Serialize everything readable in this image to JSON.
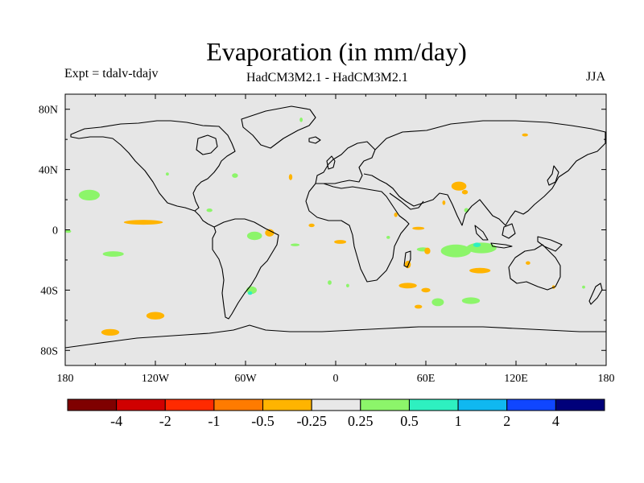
{
  "chart_data": {
    "type": "heatmap",
    "title": "Evaporation (in mm/day)",
    "left_label": "Expt = tdalv-tdajv",
    "center_label": "HadCM3M2.1 - HadCM3M2.1",
    "right_label": "JJA",
    "x_range": [
      -180,
      180
    ],
    "y_range": [
      -90,
      90
    ],
    "x_ticks": [
      {
        "value": -180,
        "label": "180"
      },
      {
        "value": -120,
        "label": "120W"
      },
      {
        "value": -60,
        "label": "60W"
      },
      {
        "value": 0,
        "label": "0"
      },
      {
        "value": 60,
        "label": "60E"
      },
      {
        "value": 120,
        "label": "120E"
      },
      {
        "value": 180,
        "label": "180"
      }
    ],
    "y_ticks": [
      {
        "value": 80,
        "label": "80N"
      },
      {
        "value": 40,
        "label": "40N"
      },
      {
        "value": 0,
        "label": "0"
      },
      {
        "value": -40,
        "label": "40S"
      },
      {
        "value": -80,
        "label": "80S"
      }
    ],
    "colorbar": {
      "colors": [
        "#7f0000",
        "#d00000",
        "#ff2a00",
        "#ff7b00",
        "#ffb400",
        "#e8e8e8",
        "#8cf56a",
        "#2ef0c0",
        "#10b8f0",
        "#1046ff",
        "#00007a"
      ],
      "labels": [
        "-4",
        "-2",
        "-1",
        "-0.5",
        "-0.25",
        "0.25",
        "0.5",
        "1",
        "2",
        "4"
      ]
    },
    "anomalies": [
      {
        "lon": -164,
        "lat": 23,
        "rlon": 7,
        "rlat": 3.5,
        "class": 0.5
      },
      {
        "lon": -148,
        "lat": -16,
        "rlon": 7,
        "rlat": 1.8,
        "class": 0.5
      },
      {
        "lon": -128,
        "lat": 5,
        "rlon": 13,
        "rlat": 1.6,
        "class": -0.25
      },
      {
        "lon": -120,
        "lat": -57,
        "rlon": 6,
        "rlat": 2.5,
        "class": -0.25
      },
      {
        "lon": -150,
        "lat": -68,
        "rlon": 6,
        "rlat": 2.2,
        "class": -0.25
      },
      {
        "lon": -54,
        "lat": -4,
        "rlon": 5,
        "rlat": 2.8,
        "class": 0.5
      },
      {
        "lon": -44,
        "lat": -2,
        "rlon": 3,
        "rlat": 2.5,
        "class": -0.25
      },
      {
        "lon": -56,
        "lat": -40,
        "rlon": 3.5,
        "rlat": 2.5,
        "class": 0.5
      },
      {
        "lon": -57,
        "lat": -42,
        "rlon": 1.5,
        "rlat": 1.2,
        "class": 1
      },
      {
        "lon": -27,
        "lat": -10,
        "rlon": 3,
        "rlat": 0.9,
        "class": 0.5
      },
      {
        "lon": 3,
        "lat": -8,
        "rlon": 4,
        "rlat": 1.3,
        "class": -0.25
      },
      {
        "lon": -4,
        "lat": -35,
        "rlon": 1.3,
        "rlat": 1.5,
        "class": 0.5
      },
      {
        "lon": 8,
        "lat": -37,
        "rlon": 1,
        "rlat": 1.2,
        "class": 0.5
      },
      {
        "lon": -16,
        "lat": 3,
        "rlon": 2,
        "rlat": 1.2,
        "class": -0.25
      },
      {
        "lon": 58,
        "lat": -13,
        "rlon": 4,
        "rlat": 1.4,
        "class": 0.5
      },
      {
        "lon": 55,
        "lat": 1,
        "rlon": 4,
        "rlat": 1,
        "class": -0.25
      },
      {
        "lon": 48,
        "lat": -23,
        "rlon": 2,
        "rlat": 2.5,
        "class": -0.25
      },
      {
        "lon": 61,
        "lat": -14,
        "rlon": 2,
        "rlat": 2.2,
        "class": -0.25
      },
      {
        "lon": 48,
        "lat": -37,
        "rlon": 6,
        "rlat": 1.8,
        "class": -0.25
      },
      {
        "lon": 60,
        "lat": -40,
        "rlon": 3,
        "rlat": 1.5,
        "class": -0.25
      },
      {
        "lon": 68,
        "lat": -48,
        "rlon": 4,
        "rlat": 2.6,
        "class": 0.5
      },
      {
        "lon": 55,
        "lat": -51,
        "rlon": 2.5,
        "rlat": 1.3,
        "class": -0.25
      },
      {
        "lon": 90,
        "lat": -47,
        "rlon": 6,
        "rlat": 2.2,
        "class": 0.5
      },
      {
        "lon": 80,
        "lat": -14,
        "rlon": 10,
        "rlat": 4.2,
        "class": 0.5
      },
      {
        "lon": 97,
        "lat": -12,
        "rlon": 10,
        "rlat": 3.5,
        "class": 0.5
      },
      {
        "lon": 94,
        "lat": -10,
        "rlon": 2.5,
        "rlat": 1.5,
        "class": 1
      },
      {
        "lon": 96,
        "lat": -27,
        "rlon": 7,
        "rlat": 1.8,
        "class": -0.25
      },
      {
        "lon": 82,
        "lat": 29,
        "rlon": 5,
        "rlat": 3,
        "class": -0.25
      },
      {
        "lon": 86,
        "lat": 25,
        "rlon": 2,
        "rlat": 1.5,
        "class": -0.25
      },
      {
        "lon": 87,
        "lat": 13,
        "rlon": 1.5,
        "rlat": 1.5,
        "class": 0.5
      },
      {
        "lon": 40,
        "lat": 10,
        "rlon": 1.2,
        "rlat": 1.5,
        "class": -0.25
      },
      {
        "lon": 72,
        "lat": 18,
        "rlon": 1,
        "rlat": 1.5,
        "class": -0.25
      },
      {
        "lon": 35,
        "lat": -5,
        "rlon": 1.2,
        "rlat": 1,
        "class": 0.5
      },
      {
        "lon": -30,
        "lat": 35,
        "rlon": 1.2,
        "rlat": 2,
        "class": -0.25
      },
      {
        "lon": -67,
        "lat": 36,
        "rlon": 2,
        "rlat": 1.5,
        "class": 0.5
      },
      {
        "lon": -84,
        "lat": 13,
        "rlon": 2,
        "rlat": 1.2,
        "class": 0.5
      },
      {
        "lon": 128,
        "lat": -22,
        "rlon": 1.5,
        "rlat": 1.2,
        "class": -0.25
      },
      {
        "lon": 145,
        "lat": -38,
        "rlon": 1,
        "rlat": 1.2,
        "class": -0.25
      },
      {
        "lon": 165,
        "lat": -38,
        "rlon": 1,
        "rlat": 1,
        "class": 0.5
      },
      {
        "lon": 126,
        "lat": 63,
        "rlon": 2,
        "rlat": 1,
        "class": -0.25
      },
      {
        "lon": -178,
        "lat": -1,
        "rlon": 2,
        "rlat": 1,
        "class": 0.5
      },
      {
        "lon": -112,
        "lat": 37,
        "rlon": 1,
        "rlat": 1,
        "class": 0.5
      },
      {
        "lon": -23,
        "lat": 73,
        "rlon": 1,
        "rlat": 1.5,
        "class": 0.5
      }
    ]
  }
}
